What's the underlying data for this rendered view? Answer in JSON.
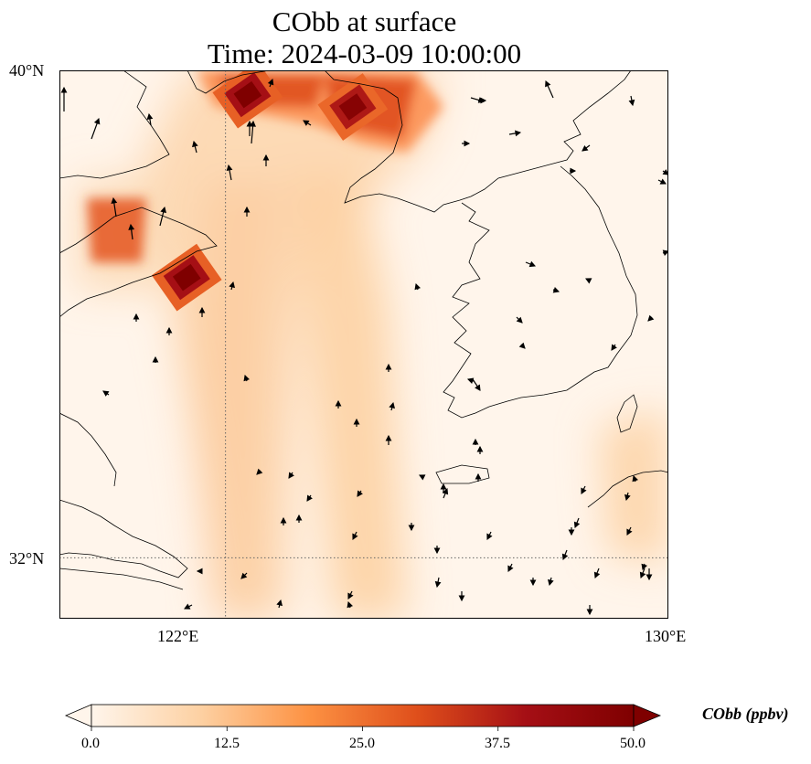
{
  "title": {
    "line1": "CObb at surface",
    "line2": "Time: 2024-03-09 10:00:00"
  },
  "map": {
    "extent": {
      "lon_min": 119,
      "lon_max": 130,
      "lat_min": 31,
      "lat_max": 40
    },
    "gridlines": {
      "lons": [
        122
      ],
      "lats": [
        32
      ]
    },
    "lat_ticks": [
      {
        "value": 40,
        "label": "40°N"
      },
      {
        "value": 32,
        "label": "32°N"
      }
    ],
    "lon_ticks": [
      {
        "value": 122,
        "label": "122°E"
      },
      {
        "value": 130,
        "label": "130°E"
      }
    ],
    "variable": "CObb",
    "units": "ppbv",
    "hotspots": [
      {
        "lon": 121.3,
        "lat": 36.6,
        "value": 50
      },
      {
        "lon": 122.4,
        "lat": 39.6,
        "value": 50
      },
      {
        "lon": 124.3,
        "lat": 39.4,
        "value": 48
      }
    ]
  },
  "colorbar": {
    "label": "CObb (ppbv)",
    "min": 0.0,
    "max": 50.0,
    "colors": [
      "#fff5eb",
      "#fdd1a3",
      "#fd9243",
      "#df4f1b",
      "#a50f15",
      "#7f0000"
    ],
    "ticks": [
      {
        "value": 0.0,
        "label": "0.0"
      },
      {
        "value": 12.5,
        "label": "12.5"
      },
      {
        "value": 25.0,
        "label": "25.0"
      },
      {
        "value": 37.5,
        "label": "37.5"
      },
      {
        "value": 50.0,
        "label": "50.0"
      }
    ]
  }
}
